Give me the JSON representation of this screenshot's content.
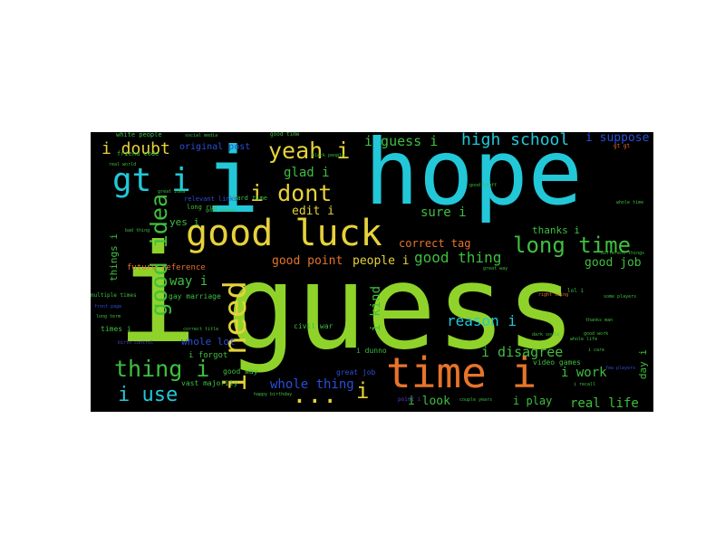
{
  "palette": {
    "background": "#000000",
    "page": "#ffffff",
    "lime": "#8fd32a",
    "cyan": "#22c8d8",
    "orange": "#e6742a",
    "yellow": "#e6d23a",
    "green": "#3fbf3f",
    "blue": "#2a4fd8",
    "purple": "#5a3fd0"
  },
  "words": [
    {
      "id": "guess",
      "text": "guess",
      "color": "#8fd32a"
    },
    {
      "id": "hope",
      "text": "hope",
      "color": "#22c8d8"
    },
    {
      "id": "i-big",
      "text": "i",
      "color": "#8fd32a"
    },
    {
      "id": "i-mid",
      "text": "i",
      "color": "#22c8d8"
    },
    {
      "id": "time-i",
      "text": "time i",
      "color": "#e6742a"
    },
    {
      "id": "good-luck",
      "text": "good luck",
      "color": "#e6d23a"
    },
    {
      "id": "i-need",
      "text": "i need",
      "color": "#e6d23a"
    },
    {
      "id": "gt-i",
      "text": "gt i",
      "color": "#22c8d8"
    },
    {
      "id": "good-idea",
      "text": "good idea",
      "color": "#3fbf3f"
    },
    {
      "id": "yeah-i",
      "text": "yeah i",
      "color": "#e6d23a"
    },
    {
      "id": "i-dont",
      "text": "i dont",
      "color": "#e6d23a"
    },
    {
      "id": "long-time",
      "text": "long time",
      "color": "#3fbf3f"
    },
    {
      "id": "thing-i",
      "text": "thing i",
      "color": "#3fbf3f"
    },
    {
      "id": "i-use",
      "text": "i use",
      "color": "#22c8d8"
    },
    {
      "id": "high-school",
      "text": "high school",
      "color": "#22c8d8"
    },
    {
      "id": "i-guess-i",
      "text": "i guess i",
      "color": "#3fbf3f"
    },
    {
      "id": "i-doubt",
      "text": "i doubt",
      "color": "#e6d23a"
    },
    {
      "id": "ellipsis",
      "text": "...",
      "color": "#e6d23a"
    },
    {
      "id": "i-small",
      "text": "i",
      "color": "#e6d23a"
    },
    {
      "id": "glad-i",
      "text": "glad i",
      "color": "#3fbf3f"
    },
    {
      "id": "edit-i",
      "text": "edit i",
      "color": "#e6d23a"
    },
    {
      "id": "good-thing",
      "text": "good thing",
      "color": "#3fbf3f"
    },
    {
      "id": "good-point",
      "text": "good point",
      "color": "#e6742a"
    },
    {
      "id": "people-i",
      "text": "people i",
      "color": "#e6d23a"
    },
    {
      "id": "whole-thing",
      "text": "whole thing",
      "color": "#2a4fd8"
    },
    {
      "id": "reason-i",
      "text": "reason i",
      "color": "#22c8d8"
    },
    {
      "id": "i-disagree",
      "text": "i disagree",
      "color": "#3fbf3f"
    },
    {
      "id": "i-work",
      "text": "i work",
      "color": "#3fbf3f"
    },
    {
      "id": "real-life",
      "text": "real life",
      "color": "#3fbf3f"
    },
    {
      "id": "i-look",
      "text": "i look",
      "color": "#3fbf3f"
    },
    {
      "id": "i-play",
      "text": "i play",
      "color": "#3fbf3f"
    },
    {
      "id": "i-kind",
      "text": "i kind",
      "color": "#3fbf3f"
    },
    {
      "id": "sure-i",
      "text": "sure i",
      "color": "#3fbf3f"
    },
    {
      "id": "thanks-i",
      "text": "thanks i",
      "color": "#3fbf3f"
    },
    {
      "id": "correct-tag",
      "text": "correct tag",
      "color": "#e6742a"
    },
    {
      "id": "good-job",
      "text": "good job",
      "color": "#3fbf3f"
    },
    {
      "id": "i-suppose",
      "text": "i suppose",
      "color": "#2a4fd8"
    },
    {
      "id": "way-i",
      "text": "way i",
      "color": "#3fbf3f"
    },
    {
      "id": "future-reference",
      "text": "future reference",
      "color": "#e6742a"
    },
    {
      "id": "yes-i",
      "text": "yes i",
      "color": "#3fbf3f"
    },
    {
      "id": "original-post",
      "text": "original post",
      "color": "#2a4fd8"
    },
    {
      "id": "things-i",
      "text": "things i",
      "color": "#3fbf3f"
    },
    {
      "id": "whole-lot",
      "text": "whole lot",
      "color": "#2a4fd8"
    },
    {
      "id": "i-forgot",
      "text": "i forgot",
      "color": "#3fbf3f"
    },
    {
      "id": "vast-majority",
      "text": "vast majority",
      "color": "#3fbf3f"
    },
    {
      "id": "good-way",
      "text": "good way",
      "color": "#3fbf3f"
    },
    {
      "id": "i-dunno",
      "text": "i dunno",
      "color": "#3fbf3f"
    },
    {
      "id": "great-job",
      "text": "great job",
      "color": "#2a4fd8"
    },
    {
      "id": "video-games",
      "text": "video games",
      "color": "#3fbf3f"
    },
    {
      "id": "day-i",
      "text": "day i",
      "color": "#3fbf3f"
    },
    {
      "id": "gay-marriage",
      "text": "gay marriage",
      "color": "#3fbf3f"
    },
    {
      "id": "civil-war",
      "text": "civil war",
      "color": "#3fbf3f"
    },
    {
      "id": "hard-time",
      "text": "hard time",
      "color": "#3fbf3f"
    },
    {
      "id": "relevant-links",
      "text": "relevant links",
      "color": "#2a4fd8"
    },
    {
      "id": "long-run",
      "text": "long run",
      "color": "#3fbf3f"
    },
    {
      "id": "friend-code",
      "text": "friend code",
      "color": "#3fbf3f"
    },
    {
      "id": "white-people",
      "text": "white people",
      "color": "#3fbf3f"
    },
    {
      "id": "good-time",
      "text": "good time",
      "color": "#3fbf3f"
    },
    {
      "id": "times-i",
      "text": "times i",
      "color": "#3fbf3f"
    },
    {
      "id": "social-media",
      "text": "social media",
      "color": "#3fbf3f"
    },
    {
      "id": "black-people",
      "text": "black people",
      "color": "#3fbf3f"
    },
    {
      "id": "real-world",
      "text": "real world",
      "color": "#3fbf3f"
    },
    {
      "id": "good-reason",
      "text": "good reason",
      "color": "#3fbf3f"
    },
    {
      "id": "great-idea",
      "text": "great idea",
      "color": "#3fbf3f"
    },
    {
      "id": "good-stuff",
      "text": "good stuff",
      "color": "#3fbf3f"
    },
    {
      "id": "whole-time",
      "text": "whole time",
      "color": "#3fbf3f"
    },
    {
      "id": "multiple-times",
      "text": "multiple times",
      "color": "#3fbf3f"
    },
    {
      "id": "long-term",
      "text": "long term",
      "color": "#3fbf3f"
    },
    {
      "id": "correct-title",
      "text": "correct title",
      "color": "#3fbf3f"
    },
    {
      "id": "happy-birthday",
      "text": "happy birthday",
      "color": "#3fbf3f"
    },
    {
      "id": "right-thing",
      "text": "right thing",
      "color": "#e6742a"
    },
    {
      "id": "dark-souls",
      "text": "dark souls",
      "color": "#3fbf3f"
    },
    {
      "id": "few-players",
      "text": "few players",
      "color": "#2a4fd8"
    },
    {
      "id": "different-things",
      "text": "different things",
      "color": "#3fbf3f"
    },
    {
      "id": "couple-years",
      "text": "couple years",
      "color": "#3fbf3f"
    },
    {
      "id": "thanks-man",
      "text": "thanks man",
      "color": "#3fbf3f"
    },
    {
      "id": "go-gt",
      "text": "gt gt",
      "color": "#e6742a"
    },
    {
      "id": "birth-control",
      "text": "birth control",
      "color": "#5a3fd0"
    },
    {
      "id": "bad-thing",
      "text": "bad thing",
      "color": "#3fbf3f"
    },
    {
      "id": "front-page",
      "text": "front page",
      "color": "#2a4fd8"
    },
    {
      "id": "i-care",
      "text": "i care",
      "color": "#3fbf3f"
    },
    {
      "id": "lol-i",
      "text": "lol i",
      "color": "#3fbf3f"
    },
    {
      "id": "point-i",
      "text": "point i",
      "color": "#5a3fd0"
    },
    {
      "id": "good-work",
      "text": "good work",
      "color": "#3fbf3f"
    },
    {
      "id": "great-way",
      "text": "great way",
      "color": "#3fbf3f"
    },
    {
      "id": "i-recall",
      "text": "i recall",
      "color": "#3fbf3f"
    },
    {
      "id": "some-players",
      "text": "some players",
      "color": "#3fbf3f"
    },
    {
      "id": "whole-life",
      "text": "whole life",
      "color": "#3fbf3f"
    }
  ]
}
